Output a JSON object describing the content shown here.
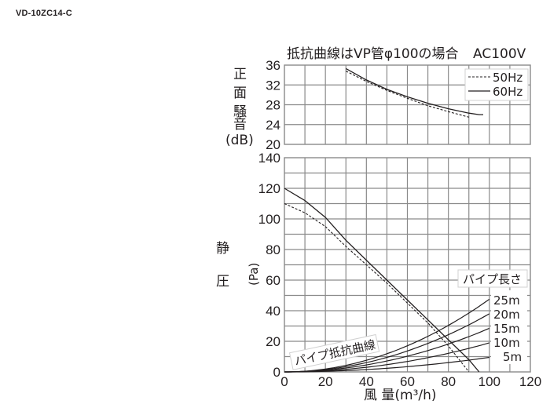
{
  "header": {
    "model": "VD-10ZC14-C"
  },
  "noise_chart": {
    "title": "抵抗曲線はVP管φ100の場合",
    "voltage": "AC100V",
    "ylabel_chars": [
      "正",
      "面",
      "騒",
      "音"
    ],
    "ylabel_unit": "(dB)",
    "yticks": [
      "36",
      "32",
      "28",
      "24",
      "20"
    ],
    "legend": [
      "50Hz",
      "60Hz"
    ]
  },
  "pressure_chart": {
    "ylabel_chars": [
      "静",
      "圧"
    ],
    "ylabel_unit": "(Pa)",
    "yticks": [
      "140",
      "120",
      "100",
      "80",
      "60",
      "40",
      "20",
      "0"
    ],
    "xticks": [
      "0",
      "20",
      "40",
      "60",
      "80",
      "100",
      "120"
    ],
    "xlabel": "風 量(m³/h)",
    "pipe_label": "パイプ抵抗曲線",
    "pipe_length_title": "パイプ長さ",
    "pipe_lengths": [
      "25m",
      "20m",
      "15m",
      "10m",
      "5m"
    ]
  },
  "chart_data": [
    {
      "type": "line",
      "title": "抵抗曲線はVP管φ100の場合 AC100V",
      "xlabel": "風量 (m³/h)",
      "ylabel": "正面騒音 (dB)",
      "xlim": [
        0,
        120
      ],
      "ylim": [
        20,
        36
      ],
      "grid": true,
      "legend_position": "top-right",
      "series": [
        {
          "name": "50Hz",
          "style": "dashed",
          "x": [
            30,
            40,
            50,
            60,
            70,
            80,
            90
          ],
          "y": [
            34.8,
            32.7,
            30.9,
            29.3,
            27.8,
            26.6,
            25.5
          ]
        },
        {
          "name": "60Hz",
          "style": "solid",
          "x": [
            30,
            40,
            50,
            60,
            70,
            80,
            90,
            95,
            97
          ],
          "y": [
            35.3,
            33.0,
            31.1,
            29.6,
            28.3,
            27.2,
            26.3,
            26.0,
            26.0
          ]
        }
      ]
    },
    {
      "type": "line",
      "title": "",
      "xlabel": "風量 (m³/h)",
      "ylabel": "静圧 (Pa)",
      "xlim": [
        0,
        120
      ],
      "ylim": [
        0,
        140
      ],
      "grid": true,
      "series": [
        {
          "name": "50Hz",
          "style": "dashed",
          "x": [
            0,
            10,
            20,
            30,
            40,
            50,
            60,
            70,
            80,
            90
          ],
          "y": [
            110,
            104,
            95,
            82,
            70,
            58,
            45,
            32,
            17,
            0
          ]
        },
        {
          "name": "60Hz",
          "style": "solid",
          "x": [
            0,
            10,
            20,
            30,
            40,
            50,
            60,
            70,
            80,
            90,
            95
          ],
          "y": [
            120,
            112,
            101,
            86,
            73,
            60,
            47,
            34,
            21,
            8,
            0
          ]
        },
        {
          "name": "パイプ抵抗 5m",
          "x": [
            0,
            20,
            40,
            60,
            80,
            100
          ],
          "y": [
            0,
            0.4,
            1.5,
            3.4,
            6.1,
            9.5
          ]
        },
        {
          "name": "パイプ抵抗 10m",
          "x": [
            0,
            20,
            40,
            60,
            80,
            100
          ],
          "y": [
            0,
            0.8,
            3.0,
            6.8,
            12.2,
            19
          ]
        },
        {
          "name": "パイプ抵抗 15m",
          "x": [
            0,
            20,
            40,
            60,
            80,
            100
          ],
          "y": [
            0,
            1.1,
            4.6,
            10.3,
            18.2,
            28.5
          ]
        },
        {
          "name": "パイプ抵抗 20m",
          "x": [
            0,
            20,
            40,
            60,
            80,
            100
          ],
          "y": [
            0,
            1.5,
            6.1,
            13.7,
            24.3,
            38
          ]
        },
        {
          "name": "パイプ抵抗 25m",
          "x": [
            0,
            20,
            40,
            60,
            80,
            100
          ],
          "y": [
            0,
            1.9,
            7.6,
            17.1,
            30.4,
            47.5
          ]
        }
      ]
    }
  ]
}
